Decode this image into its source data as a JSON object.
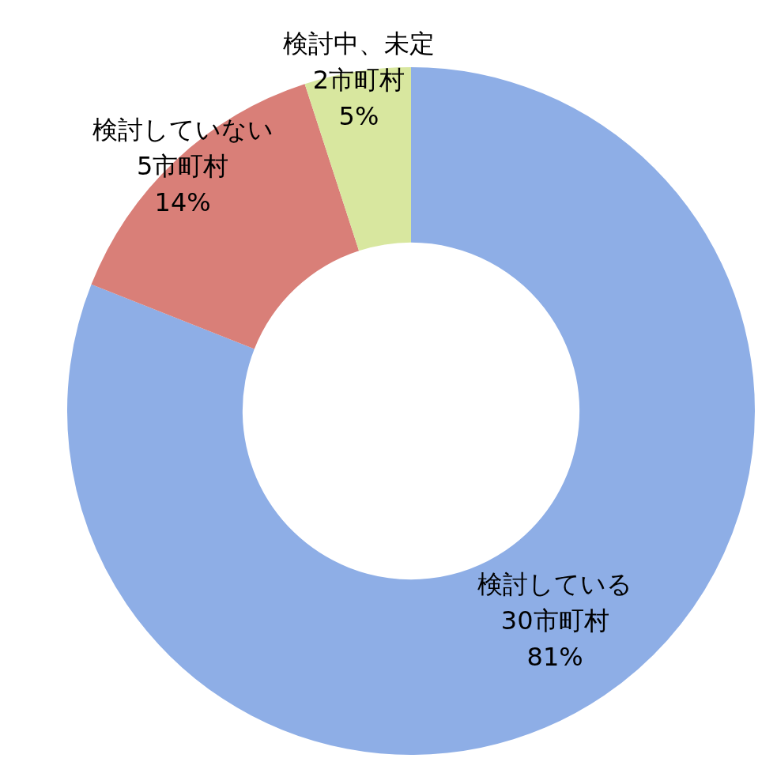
{
  "chart_data": {
    "type": "doughnut",
    "categories": [
      "検討している",
      "検討していない",
      "検討中、未定"
    ],
    "values": [
      81,
      14,
      5
    ],
    "value_labels": [
      "81%",
      "14%",
      "5%"
    ],
    "count_labels": [
      "30市町村",
      "5市町村",
      "2市町村"
    ],
    "colors": [
      "#8eaee6",
      "#d97f78",
      "#d8e79f"
    ],
    "data_labels": true,
    "legend": false
  }
}
